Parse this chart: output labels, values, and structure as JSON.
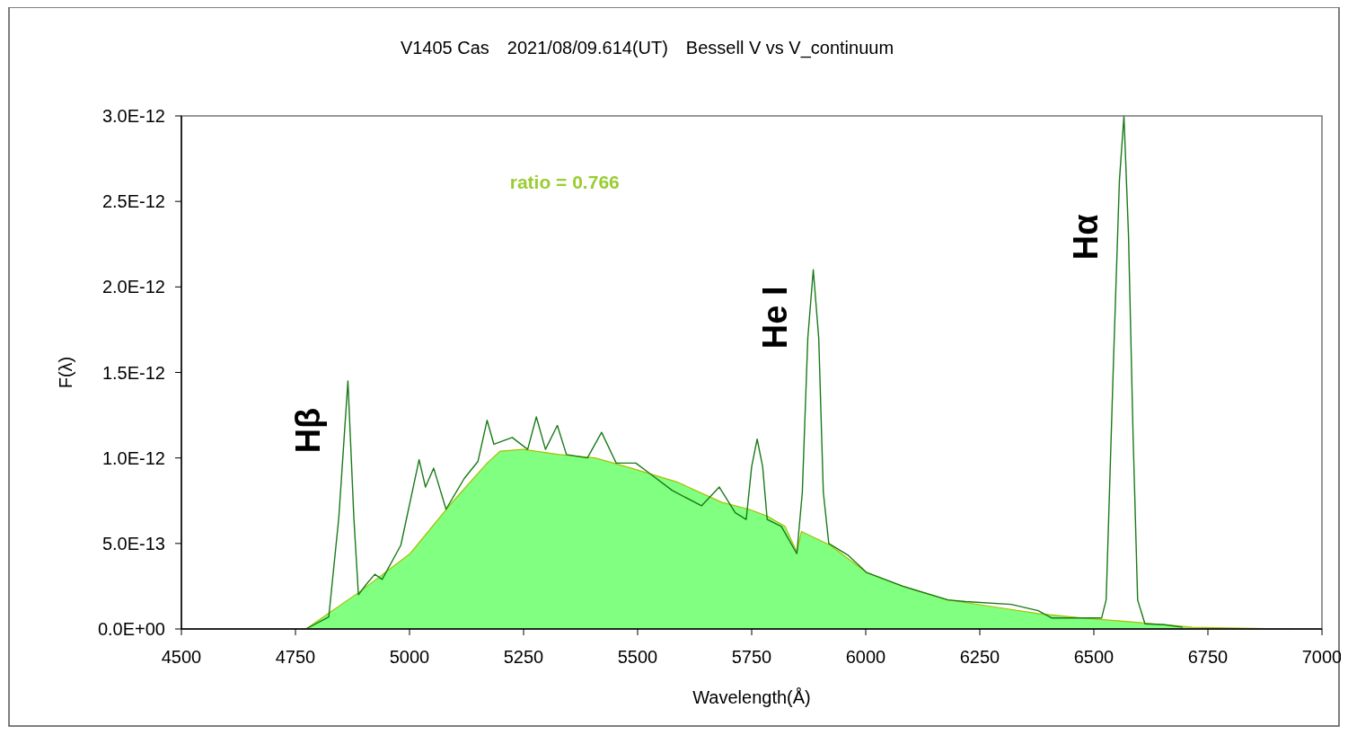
{
  "chart_data": {
    "type": "line",
    "title": "V1405 Cas　2021/08/09.614(UT)　Bessell V  vs V_continuum",
    "xlabel": "Wavelength(Å)",
    "ylabel": "F(λ)",
    "xlim": [
      4500,
      7000
    ],
    "xticks": [
      4500,
      4750,
      5000,
      5250,
      5500,
      5750,
      6000,
      6250,
      6500,
      6750,
      7000
    ],
    "ylim": [
      0,
      3e-12
    ],
    "yticks": [
      {
        "value": 0,
        "label": "0.0E+00"
      },
      {
        "value": 5e-13,
        "label": "5.0E-13"
      },
      {
        "value": 1e-12,
        "label": "1.0E-12"
      },
      {
        "value": 1.5e-12,
        "label": "1.5E-12"
      },
      {
        "value": 2e-12,
        "label": "2.0E-12"
      },
      {
        "value": 2.5e-12,
        "label": "2.5E-12"
      },
      {
        "value": 3e-12,
        "label": "3.0E-12"
      }
    ],
    "grid": false,
    "marker": "none",
    "line_style": "solid",
    "series": [
      {
        "type": "area",
        "color": "#80ff80",
        "x": [
          4773,
          4892,
          5001,
          5090,
          5170,
          5199,
          5249,
          5328,
          5407,
          5487,
          5586,
          5685,
          5744,
          5784,
          5823,
          5849,
          5859,
          5922,
          6002,
          6081,
          6180,
          6279,
          6378,
          6477,
          6576,
          6675,
          6715,
          6933
        ],
        "values": [
          0,
          2.2e-13,
          4.4e-13,
          7.3e-13,
          9.7e-13,
          1.04e-12,
          1.05e-12,
          1.02e-12,
          1e-12,
          9.4e-13,
          8.6e-13,
          7.4e-13,
          7e-13,
          6.6e-13,
          6e-13,
          4.5e-13,
          5.7e-13,
          4.9e-13,
          3.3e-13,
          2.5e-13,
          1.7e-13,
          1.3e-13,
          9e-14,
          6.4e-14,
          4.3e-14,
          2e-14,
          1e-14,
          0
        ]
      },
      {
        "color": "#1a7a1a",
        "x": [
          4773,
          4823,
          4845,
          4865,
          4878,
          4888,
          4905,
          4924,
          4940,
          4981,
          5021,
          5035,
          5053,
          5080,
          5120,
          5150,
          5170,
          5185,
          5225,
          5259,
          5278,
          5298,
          5324,
          5344,
          5390,
          5421,
          5453,
          5496,
          5526,
          5576,
          5640,
          5679,
          5714,
          5738,
          5750,
          5762,
          5774,
          5784,
          5815,
          5849,
          5861,
          5873,
          5885,
          5897,
          5907,
          5919,
          5962,
          6002,
          6081,
          6180,
          6219,
          6319,
          6378,
          6408,
          6477,
          6517,
          6527,
          6543,
          6556,
          6566,
          6576,
          6586,
          6596,
          6612,
          6655,
          6695
        ],
        "values": [
          0,
          7e-14,
          6.5e-13,
          1.45e-12,
          6.5e-13,
          2e-13,
          2.6e-13,
          3.2e-13,
          2.9e-13,
          4.9e-13,
          9.9e-13,
          8.3e-13,
          9.4e-13,
          7e-13,
          8.8e-13,
          9.8e-13,
          1.22e-12,
          1.08e-12,
          1.12e-12,
          1.05e-12,
          1.24e-12,
          1.05e-12,
          1.19e-12,
          1.02e-12,
          1e-12,
          1.15e-12,
          9.7e-13,
          9.7e-13,
          9.1e-13,
          8.1e-13,
          7.2e-13,
          8.3e-13,
          6.8e-13,
          6.4e-13,
          9.5e-13,
          1.11e-12,
          9.5e-13,
          6.4e-13,
          6e-13,
          4.4e-13,
          8e-13,
          1.7e-12,
          2.1e-12,
          1.7e-12,
          8e-13,
          5e-13,
          4.3e-13,
          3.3e-13,
          2.5e-13,
          1.7e-13,
          1.6e-13,
          1.44e-13,
          1.07e-13,
          6.4e-14,
          6.4e-14,
          6.4e-14,
          1.7e-13,
          1.56e-12,
          2.62e-12,
          3e-12,
          2.3e-12,
          1.13e-12,
          1.7e-13,
          3e-14,
          2.5e-14,
          1e-14
        ]
      }
    ],
    "annotations": [
      "ratio = 0.766",
      "Hβ",
      "He I",
      "Hα"
    ]
  }
}
